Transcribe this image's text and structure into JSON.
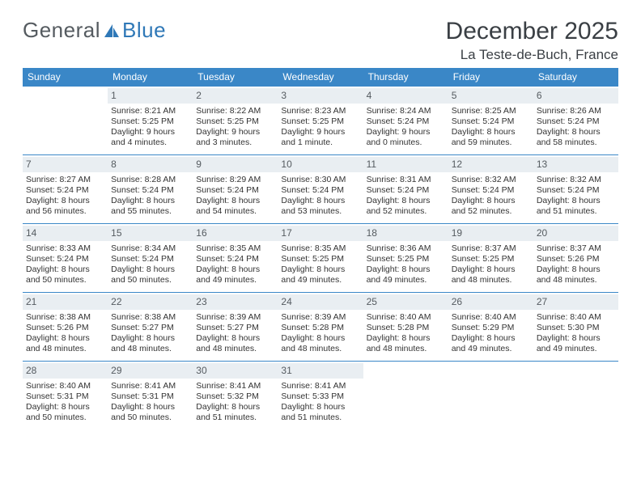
{
  "logo": {
    "text1": "General",
    "text2": "Blue"
  },
  "title": "December 2025",
  "location": "La Teste-de-Buch, France",
  "colors": {
    "header_bg": "#3a87c7",
    "daynum_bg": "#e9eef2",
    "rule": "#3a87c7",
    "text": "#333333",
    "logo_gray": "#555b60",
    "logo_blue": "#2f78b7"
  },
  "day_headers": [
    "Sunday",
    "Monday",
    "Tuesday",
    "Wednesday",
    "Thursday",
    "Friday",
    "Saturday"
  ],
  "weeks": [
    [
      null,
      {
        "d": "1",
        "sr": "8:21 AM",
        "ss": "5:25 PM",
        "dl": "9 hours and 4 minutes."
      },
      {
        "d": "2",
        "sr": "8:22 AM",
        "ss": "5:25 PM",
        "dl": "9 hours and 3 minutes."
      },
      {
        "d": "3",
        "sr": "8:23 AM",
        "ss": "5:25 PM",
        "dl": "9 hours and 1 minute."
      },
      {
        "d": "4",
        "sr": "8:24 AM",
        "ss": "5:24 PM",
        "dl": "9 hours and 0 minutes."
      },
      {
        "d": "5",
        "sr": "8:25 AM",
        "ss": "5:24 PM",
        "dl": "8 hours and 59 minutes."
      },
      {
        "d": "6",
        "sr": "8:26 AM",
        "ss": "5:24 PM",
        "dl": "8 hours and 58 minutes."
      }
    ],
    [
      {
        "d": "7",
        "sr": "8:27 AM",
        "ss": "5:24 PM",
        "dl": "8 hours and 56 minutes."
      },
      {
        "d": "8",
        "sr": "8:28 AM",
        "ss": "5:24 PM",
        "dl": "8 hours and 55 minutes."
      },
      {
        "d": "9",
        "sr": "8:29 AM",
        "ss": "5:24 PM",
        "dl": "8 hours and 54 minutes."
      },
      {
        "d": "10",
        "sr": "8:30 AM",
        "ss": "5:24 PM",
        "dl": "8 hours and 53 minutes."
      },
      {
        "d": "11",
        "sr": "8:31 AM",
        "ss": "5:24 PM",
        "dl": "8 hours and 52 minutes."
      },
      {
        "d": "12",
        "sr": "8:32 AM",
        "ss": "5:24 PM",
        "dl": "8 hours and 52 minutes."
      },
      {
        "d": "13",
        "sr": "8:32 AM",
        "ss": "5:24 PM",
        "dl": "8 hours and 51 minutes."
      }
    ],
    [
      {
        "d": "14",
        "sr": "8:33 AM",
        "ss": "5:24 PM",
        "dl": "8 hours and 50 minutes."
      },
      {
        "d": "15",
        "sr": "8:34 AM",
        "ss": "5:24 PM",
        "dl": "8 hours and 50 minutes."
      },
      {
        "d": "16",
        "sr": "8:35 AM",
        "ss": "5:24 PM",
        "dl": "8 hours and 49 minutes."
      },
      {
        "d": "17",
        "sr": "8:35 AM",
        "ss": "5:25 PM",
        "dl": "8 hours and 49 minutes."
      },
      {
        "d": "18",
        "sr": "8:36 AM",
        "ss": "5:25 PM",
        "dl": "8 hours and 49 minutes."
      },
      {
        "d": "19",
        "sr": "8:37 AM",
        "ss": "5:25 PM",
        "dl": "8 hours and 48 minutes."
      },
      {
        "d": "20",
        "sr": "8:37 AM",
        "ss": "5:26 PM",
        "dl": "8 hours and 48 minutes."
      }
    ],
    [
      {
        "d": "21",
        "sr": "8:38 AM",
        "ss": "5:26 PM",
        "dl": "8 hours and 48 minutes."
      },
      {
        "d": "22",
        "sr": "8:38 AM",
        "ss": "5:27 PM",
        "dl": "8 hours and 48 minutes."
      },
      {
        "d": "23",
        "sr": "8:39 AM",
        "ss": "5:27 PM",
        "dl": "8 hours and 48 minutes."
      },
      {
        "d": "24",
        "sr": "8:39 AM",
        "ss": "5:28 PM",
        "dl": "8 hours and 48 minutes."
      },
      {
        "d": "25",
        "sr": "8:40 AM",
        "ss": "5:28 PM",
        "dl": "8 hours and 48 minutes."
      },
      {
        "d": "26",
        "sr": "8:40 AM",
        "ss": "5:29 PM",
        "dl": "8 hours and 49 minutes."
      },
      {
        "d": "27",
        "sr": "8:40 AM",
        "ss": "5:30 PM",
        "dl": "8 hours and 49 minutes."
      }
    ],
    [
      {
        "d": "28",
        "sr": "8:40 AM",
        "ss": "5:31 PM",
        "dl": "8 hours and 50 minutes."
      },
      {
        "d": "29",
        "sr": "8:41 AM",
        "ss": "5:31 PM",
        "dl": "8 hours and 50 minutes."
      },
      {
        "d": "30",
        "sr": "8:41 AM",
        "ss": "5:32 PM",
        "dl": "8 hours and 51 minutes."
      },
      {
        "d": "31",
        "sr": "8:41 AM",
        "ss": "5:33 PM",
        "dl": "8 hours and 51 minutes."
      },
      null,
      null,
      null
    ]
  ],
  "labels": {
    "sunrise": "Sunrise:",
    "sunset": "Sunset:",
    "daylight": "Daylight:"
  }
}
